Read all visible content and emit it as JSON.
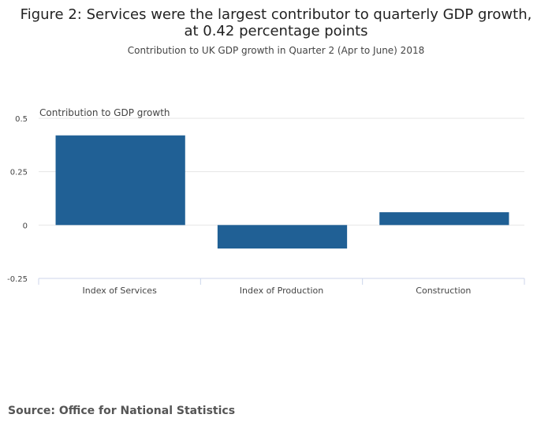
{
  "header": {
    "title": "Figure 2: Services were the largest contributor to quarterly GDP growth, at 0.42 percentage points",
    "subtitle": "Contribution to UK GDP growth in Quarter 2 (Apr to June) 2018"
  },
  "footer": {
    "source": "Source: Office for National Statistics"
  },
  "chart_data": {
    "type": "bar",
    "title": "Figure 2: Services were the largest contributor to quarterly GDP growth, at 0.42 percentage points",
    "subtitle": "Contribution to UK GDP growth in Quarter 2 (Apr to June) 2018",
    "ylabel": "Contribution to GDP growth",
    "xlabel": "",
    "categories": [
      "Index of Services",
      "Index of Production",
      "Construction"
    ],
    "values": [
      0.42,
      -0.11,
      0.06
    ],
    "ylim": [
      -0.25,
      0.5
    ],
    "yticks": [
      0.5,
      0.25,
      0,
      -0.25
    ],
    "ytick_labels": [
      "0.5",
      "0.25",
      "0",
      "-0.25"
    ],
    "grid": true,
    "legend": "none",
    "colors": {
      "bar": "#206095",
      "grid": "#e6e6e6",
      "axis": "#ccd6eb"
    }
  }
}
